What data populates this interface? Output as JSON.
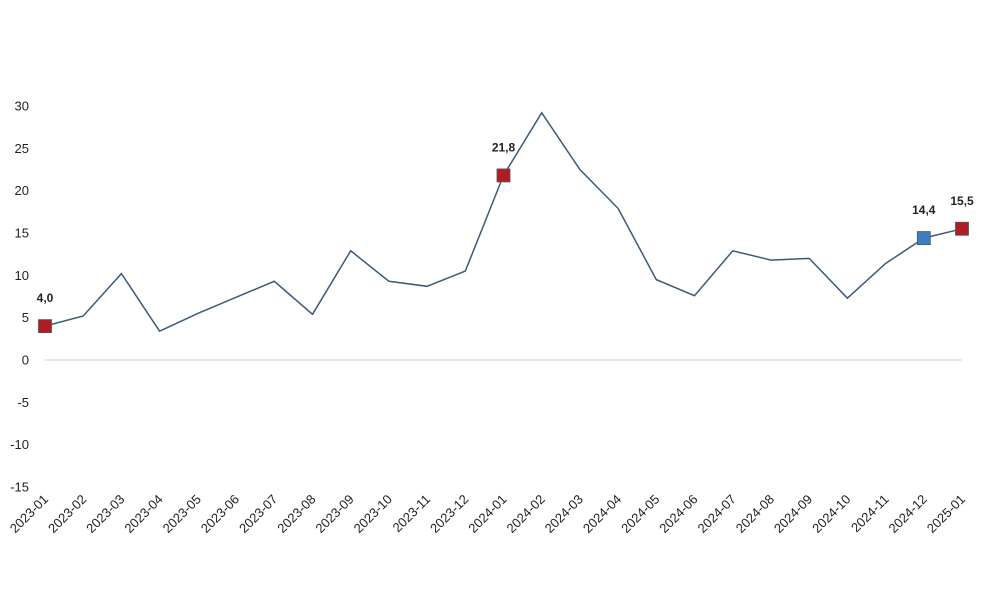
{
  "chart_data": {
    "type": "line",
    "title": "",
    "xlabel": "",
    "ylabel": "",
    "ylim": [
      -15,
      30
    ],
    "yticks": [
      "30",
      "25",
      "20",
      "15",
      "10",
      "5",
      "0",
      "-5",
      "-10",
      "-15"
    ],
    "categories": [
      "2023-01",
      "2023-02",
      "2023-03",
      "2023-04",
      "2023-05",
      "2023-06",
      "2023-07",
      "2023-08",
      "2023-09",
      "2023-10",
      "2023-11",
      "2023-12",
      "2024-01",
      "2024-02",
      "2024-03",
      "2024-04",
      "2024-05",
      "2024-06",
      "2024-07",
      "2024-08",
      "2024-09",
      "2024-10",
      "2024-11",
      "2024-12",
      "2025-01"
    ],
    "series": [
      {
        "values": [
          4.0,
          5.2,
          10.2,
          3.4,
          5.5,
          7.4,
          9.3,
          5.4,
          12.9,
          9.3,
          8.7,
          10.5,
          21.8,
          29.2,
          22.5,
          17.9,
          9.5,
          7.6,
          12.9,
          11.8,
          12.0,
          7.3,
          11.4,
          14.4,
          15.5
        ],
        "color": "#3b5a7a"
      }
    ],
    "highlights": [
      {
        "index": 0,
        "label": "4,0",
        "color": "#b01c24"
      },
      {
        "index": 12,
        "label": "21,8",
        "color": "#b01c24"
      },
      {
        "index": 23,
        "label": "14,4",
        "color": "#3a7fc0"
      },
      {
        "index": 24,
        "label": "15,5",
        "color": "#b01c24"
      }
    ],
    "grid": false,
    "legend": "none"
  }
}
